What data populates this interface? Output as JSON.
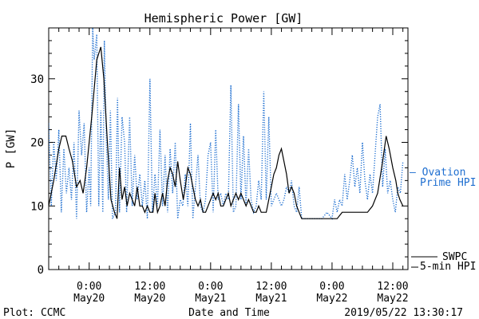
{
  "chart_data": {
    "type": "line",
    "title": "Hemispheric Power [GW]",
    "ylabel": "P [GW]",
    "xlabel": "Date and Time",
    "ylim": [
      0,
      38
    ],
    "yticks": [
      0,
      10,
      20,
      30
    ],
    "xlim_hours": [
      -8,
      63
    ],
    "xticks": [
      {
        "hour": 0,
        "time": "0:00",
        "date": "May20"
      },
      {
        "hour": 12,
        "time": "12:00",
        "date": "May20"
      },
      {
        "hour": 24,
        "time": "0:00",
        "date": "May21"
      },
      {
        "hour": 36,
        "time": "12:00",
        "date": "May21"
      },
      {
        "hour": 48,
        "time": "0:00",
        "date": "May22"
      },
      {
        "hour": 60,
        "time": "12:00",
        "date": "May22"
      }
    ],
    "series": [
      {
        "name": "SWPC 5-min HPI",
        "label_lines": [
          "SWPC",
          "5-min HPI"
        ],
        "color": "#000000",
        "style": "solid",
        "points": [
          [
            -8,
            10
          ],
          [
            -7,
            14
          ],
          [
            -6,
            19
          ],
          [
            -5.4,
            21
          ],
          [
            -4.6,
            21
          ],
          [
            -4,
            19
          ],
          [
            -3.3,
            17
          ],
          [
            -2.5,
            13
          ],
          [
            -1.8,
            14
          ],
          [
            -1.2,
            12
          ],
          [
            -0.5,
            16
          ],
          [
            0.5,
            24
          ],
          [
            1.5,
            33
          ],
          [
            2.3,
            35
          ],
          [
            2.9,
            30
          ],
          [
            3.6,
            20
          ],
          [
            4.3,
            11
          ],
          [
            5,
            9
          ],
          [
            5.5,
            8
          ],
          [
            6,
            16
          ],
          [
            6.5,
            11
          ],
          [
            7,
            13
          ],
          [
            7.5,
            10
          ],
          [
            8,
            12
          ],
          [
            8.5,
            11
          ],
          [
            9,
            10
          ],
          [
            9.5,
            13
          ],
          [
            10,
            10
          ],
          [
            10.5,
            10
          ],
          [
            11,
            9
          ],
          [
            11.5,
            10
          ],
          [
            12,
            9
          ],
          [
            12.6,
            9
          ],
          [
            13,
            12
          ],
          [
            13.5,
            9
          ],
          [
            14,
            10
          ],
          [
            14.5,
            12
          ],
          [
            15,
            10
          ],
          [
            15.5,
            14
          ],
          [
            16,
            16
          ],
          [
            16.5,
            15
          ],
          [
            17,
            13
          ],
          [
            17.5,
            17
          ],
          [
            18,
            14
          ],
          [
            18.6,
            11
          ],
          [
            19,
            13
          ],
          [
            19.5,
            16
          ],
          [
            20,
            15
          ],
          [
            20.5,
            13
          ],
          [
            21,
            11
          ],
          [
            21.5,
            10
          ],
          [
            22,
            11
          ],
          [
            22.5,
            9
          ],
          [
            23,
            9
          ],
          [
            23.5,
            10
          ],
          [
            24,
            11
          ],
          [
            24.5,
            12
          ],
          [
            25,
            11
          ],
          [
            25.5,
            12
          ],
          [
            26,
            10
          ],
          [
            26.5,
            10
          ],
          [
            27,
            11
          ],
          [
            27.5,
            12
          ],
          [
            28,
            10
          ],
          [
            28.5,
            11
          ],
          [
            29,
            12
          ],
          [
            29.5,
            11
          ],
          [
            30,
            12
          ],
          [
            30.5,
            11
          ],
          [
            31,
            10
          ],
          [
            31.5,
            11
          ],
          [
            32,
            10
          ],
          [
            32.5,
            9
          ],
          [
            33,
            9
          ],
          [
            33.5,
            10
          ],
          [
            34,
            9
          ],
          [
            34.5,
            9
          ],
          [
            35,
            9
          ],
          [
            35.5,
            11
          ],
          [
            36,
            13
          ],
          [
            36.5,
            15
          ],
          [
            37,
            16
          ],
          [
            37.5,
            18
          ],
          [
            38,
            19
          ],
          [
            38.5,
            17
          ],
          [
            39,
            15
          ],
          [
            39.5,
            12
          ],
          [
            40,
            13
          ],
          [
            40.5,
            12
          ],
          [
            41,
            10
          ],
          [
            41.5,
            9
          ],
          [
            42,
            8
          ],
          [
            43,
            8
          ],
          [
            44,
            8
          ],
          [
            45,
            8
          ],
          [
            46,
            8
          ],
          [
            47,
            8
          ],
          [
            48,
            8
          ],
          [
            49,
            8
          ],
          [
            50,
            9
          ],
          [
            51,
            9
          ],
          [
            52,
            9
          ],
          [
            53,
            9
          ],
          [
            54,
            9
          ],
          [
            55,
            9
          ],
          [
            56,
            10
          ],
          [
            57,
            12
          ],
          [
            58,
            17
          ],
          [
            58.7,
            21
          ],
          [
            59.3,
            19
          ],
          [
            60,
            16
          ],
          [
            60.6,
            14
          ],
          [
            61,
            12
          ],
          [
            61.4,
            11
          ],
          [
            62,
            10
          ]
        ]
      },
      {
        "name": "Ovation Prime HPI",
        "label_lines": [
          "— Ovation",
          "Prime HPI"
        ],
        "color": "#1f6fd0",
        "style": "dotted",
        "points": [
          [
            -8,
            23
          ],
          [
            -7.5,
            10
          ],
          [
            -7,
            20
          ],
          [
            -6.5,
            14
          ],
          [
            -6,
            22
          ],
          [
            -5.5,
            9
          ],
          [
            -5,
            19
          ],
          [
            -4.5,
            12
          ],
          [
            -4,
            16
          ],
          [
            -3.5,
            11
          ],
          [
            -3,
            20
          ],
          [
            -2.5,
            8
          ],
          [
            -2,
            25
          ],
          [
            -1.5,
            18
          ],
          [
            -1,
            23
          ],
          [
            -0.5,
            9
          ],
          [
            0,
            16
          ],
          [
            0.3,
            10
          ],
          [
            0.7,
            38
          ],
          [
            1,
            33
          ],
          [
            1.5,
            37
          ],
          [
            1.9,
            10
          ],
          [
            2.3,
            25
          ],
          [
            2.7,
            9
          ],
          [
            3,
            36
          ],
          [
            3.4,
            20
          ],
          [
            3.8,
            11
          ],
          [
            4.2,
            25
          ],
          [
            4.6,
            8
          ],
          [
            5.2,
            9
          ],
          [
            5.6,
            27
          ],
          [
            6,
            9
          ],
          [
            6.5,
            24
          ],
          [
            7,
            20
          ],
          [
            7.4,
            9
          ],
          [
            8,
            24
          ],
          [
            8.5,
            10
          ],
          [
            9,
            18
          ],
          [
            9.5,
            11
          ],
          [
            10,
            15
          ],
          [
            10.5,
            10
          ],
          [
            11,
            14
          ],
          [
            11.5,
            8
          ],
          [
            12,
            30
          ],
          [
            12.5,
            9
          ],
          [
            13,
            15
          ],
          [
            13.5,
            10
          ],
          [
            14,
            22
          ],
          [
            14.5,
            10
          ],
          [
            15,
            18
          ],
          [
            15.5,
            9
          ],
          [
            16,
            19
          ],
          [
            16.5,
            12
          ],
          [
            17,
            20
          ],
          [
            17.5,
            8
          ],
          [
            18,
            11
          ],
          [
            18.5,
            10
          ],
          [
            19,
            15
          ],
          [
            19.5,
            10
          ],
          [
            20,
            23
          ],
          [
            20.5,
            8
          ],
          [
            21,
            13
          ],
          [
            21.5,
            18
          ],
          [
            22,
            10
          ],
          [
            22.5,
            9
          ],
          [
            23,
            11
          ],
          [
            23.5,
            18
          ],
          [
            24,
            20
          ],
          [
            24.5,
            9
          ],
          [
            25,
            22
          ],
          [
            25.5,
            11
          ],
          [
            26,
            12
          ],
          [
            26.5,
            10
          ],
          [
            27,
            12
          ],
          [
            27.5,
            11
          ],
          [
            28,
            29
          ],
          [
            28.5,
            9
          ],
          [
            29,
            10
          ],
          [
            29.5,
            26
          ],
          [
            30,
            11
          ],
          [
            30.5,
            21
          ],
          [
            31,
            10
          ],
          [
            31.5,
            19
          ],
          [
            32,
            11
          ],
          [
            32.5,
            9
          ],
          [
            33,
            10
          ],
          [
            33.5,
            14
          ],
          [
            34,
            11
          ],
          [
            34.5,
            28
          ],
          [
            35,
            11
          ],
          [
            35.5,
            24
          ],
          [
            36,
            10
          ],
          [
            36.5,
            11
          ],
          [
            37,
            12
          ],
          [
            37.5,
            11
          ],
          [
            38,
            10
          ],
          [
            38.5,
            11
          ],
          [
            39,
            13
          ],
          [
            39.5,
            12
          ],
          [
            40,
            14
          ],
          [
            40.5,
            10
          ],
          [
            41,
            9
          ],
          [
            41.5,
            13
          ],
          [
            42,
            8
          ],
          [
            43,
            8
          ],
          [
            44,
            8
          ],
          [
            45,
            8
          ],
          [
            46,
            8
          ],
          [
            47,
            9
          ],
          [
            48,
            8
          ],
          [
            48.5,
            11
          ],
          [
            49,
            9
          ],
          [
            49.5,
            11
          ],
          [
            50,
            10
          ],
          [
            50.5,
            15
          ],
          [
            51,
            11
          ],
          [
            51.5,
            14
          ],
          [
            52,
            18
          ],
          [
            52.5,
            13
          ],
          [
            53,
            16
          ],
          [
            53.5,
            12
          ],
          [
            54,
            20
          ],
          [
            54.5,
            14
          ],
          [
            55,
            11
          ],
          [
            55.5,
            15
          ],
          [
            56,
            12
          ],
          [
            56.5,
            18
          ],
          [
            57,
            24
          ],
          [
            57.5,
            26
          ],
          [
            58,
            13
          ],
          [
            58.5,
            19
          ],
          [
            59,
            12
          ],
          [
            59.5,
            14
          ],
          [
            60,
            11
          ],
          [
            60.5,
            9
          ],
          [
            61,
            13
          ],
          [
            61.5,
            12
          ],
          [
            62,
            17
          ]
        ]
      }
    ]
  },
  "footer": {
    "left": "Plot: CCMC",
    "timestamp": "2019/05/22 13:30:17"
  }
}
